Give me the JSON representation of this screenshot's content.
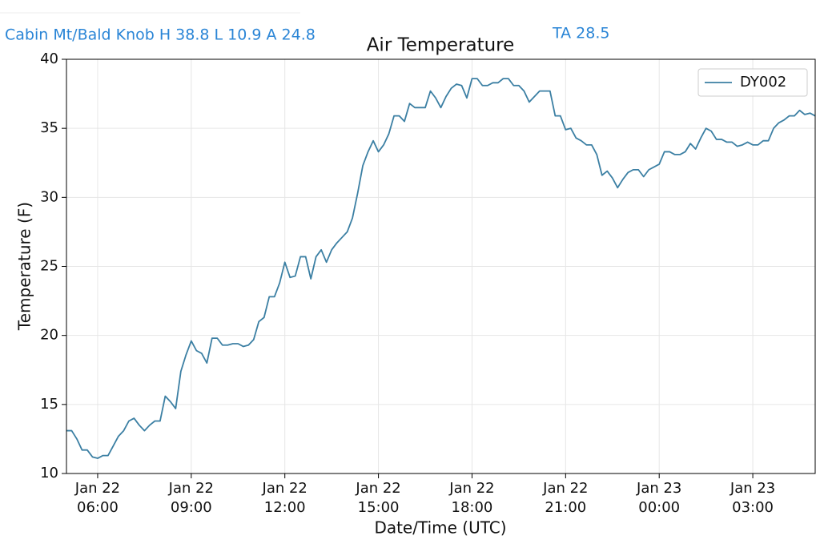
{
  "header": {
    "station": "Cabin Mt/Bald Knob H 38.8 L 10.9 A 24.8",
    "ta": "TA  28.5"
  },
  "chart_data": {
    "type": "line",
    "title": "Air Temperature",
    "xlabel": "Date/Time (UTC)",
    "ylabel": "Temperature (F)",
    "xlim": [
      "Jan 22 05:00",
      "Jan 23 05:00"
    ],
    "ylim": [
      10,
      40
    ],
    "yticks": [
      10,
      15,
      20,
      25,
      30,
      35,
      40
    ],
    "xticks": [
      {
        "value": "Jan 22 06:00",
        "label": [
          "Jan 22",
          "06:00"
        ]
      },
      {
        "value": "Jan 22 09:00",
        "label": [
          "Jan 22",
          "09:00"
        ]
      },
      {
        "value": "Jan 22 12:00",
        "label": [
          "Jan 22",
          "12:00"
        ]
      },
      {
        "value": "Jan 22 15:00",
        "label": [
          "Jan 22",
          "15:00"
        ]
      },
      {
        "value": "Jan 22 18:00",
        "label": [
          "Jan 22",
          "18:00"
        ]
      },
      {
        "value": "Jan 22 21:00",
        "label": [
          "Jan 22",
          "21:00"
        ]
      },
      {
        "value": "Jan 23 00:00",
        "label": [
          "Jan 23",
          "00:00"
        ]
      },
      {
        "value": "Jan 23 03:00",
        "label": [
          "Jan 23",
          "03:00"
        ]
      }
    ],
    "grid": true,
    "legend": "upper right",
    "x": [
      "Jan 22 05:00",
      "Jan 22 05:10",
      "Jan 22 05:20",
      "Jan 22 05:30",
      "Jan 22 05:40",
      "Jan 22 05:50",
      "Jan 22 06:00",
      "Jan 22 06:10",
      "Jan 22 06:20",
      "Jan 22 06:30",
      "Jan 22 06:40",
      "Jan 22 06:50",
      "Jan 22 07:00",
      "Jan 22 07:10",
      "Jan 22 07:20",
      "Jan 22 07:30",
      "Jan 22 07:40",
      "Jan 22 07:50",
      "Jan 22 08:00",
      "Jan 22 08:10",
      "Jan 22 08:20",
      "Jan 22 08:30",
      "Jan 22 08:40",
      "Jan 22 08:50",
      "Jan 22 09:00",
      "Jan 22 09:10",
      "Jan 22 09:20",
      "Jan 22 09:30",
      "Jan 22 09:40",
      "Jan 22 09:50",
      "Jan 22 10:00",
      "Jan 22 10:10",
      "Jan 22 10:20",
      "Jan 22 10:30",
      "Jan 22 10:40",
      "Jan 22 10:50",
      "Jan 22 11:00",
      "Jan 22 11:10",
      "Jan 22 11:20",
      "Jan 22 11:30",
      "Jan 22 11:40",
      "Jan 22 11:50",
      "Jan 22 12:00",
      "Jan 22 12:10",
      "Jan 22 12:20",
      "Jan 22 12:30",
      "Jan 22 12:40",
      "Jan 22 12:50",
      "Jan 22 13:00",
      "Jan 22 13:10",
      "Jan 22 13:20",
      "Jan 22 13:30",
      "Jan 22 13:40",
      "Jan 22 13:50",
      "Jan 22 14:00",
      "Jan 22 14:10",
      "Jan 22 14:20",
      "Jan 22 14:30",
      "Jan 22 14:40",
      "Jan 22 14:50",
      "Jan 22 15:00",
      "Jan 22 15:10",
      "Jan 22 15:20",
      "Jan 22 15:30",
      "Jan 22 15:40",
      "Jan 22 15:50",
      "Jan 22 16:00",
      "Jan 22 16:10",
      "Jan 22 16:20",
      "Jan 22 16:30",
      "Jan 22 16:40",
      "Jan 22 16:50",
      "Jan 22 17:00",
      "Jan 22 17:10",
      "Jan 22 17:20",
      "Jan 22 17:30",
      "Jan 22 17:40",
      "Jan 22 17:50",
      "Jan 22 18:00",
      "Jan 22 18:10",
      "Jan 22 18:20",
      "Jan 22 18:30",
      "Jan 22 18:40",
      "Jan 22 18:50",
      "Jan 22 19:00",
      "Jan 22 19:10",
      "Jan 22 19:20",
      "Jan 22 19:30",
      "Jan 22 19:40",
      "Jan 22 19:50",
      "Jan 22 20:00",
      "Jan 22 20:10",
      "Jan 22 20:20",
      "Jan 22 20:30",
      "Jan 22 20:40",
      "Jan 22 20:50",
      "Jan 22 21:00",
      "Jan 22 21:10",
      "Jan 22 21:20",
      "Jan 22 21:30",
      "Jan 22 21:40",
      "Jan 22 21:50",
      "Jan 22 22:00",
      "Jan 22 22:10",
      "Jan 22 22:20",
      "Jan 22 22:30",
      "Jan 22 22:40",
      "Jan 22 22:50",
      "Jan 22 23:00",
      "Jan 22 23:10",
      "Jan 22 23:20",
      "Jan 22 23:30",
      "Jan 22 23:40",
      "Jan 22 23:50",
      "Jan 23 00:00",
      "Jan 23 00:10",
      "Jan 23 00:20",
      "Jan 23 00:30",
      "Jan 23 00:40",
      "Jan 23 00:50",
      "Jan 23 01:00",
      "Jan 23 01:10",
      "Jan 23 01:20",
      "Jan 23 01:30",
      "Jan 23 01:40",
      "Jan 23 01:50",
      "Jan 23 02:00",
      "Jan 23 02:10",
      "Jan 23 02:20",
      "Jan 23 02:30",
      "Jan 23 02:40",
      "Jan 23 02:50",
      "Jan 23 03:00",
      "Jan 23 03:10",
      "Jan 23 03:20",
      "Jan 23 03:30",
      "Jan 23 03:40",
      "Jan 23 03:50",
      "Jan 23 04:00",
      "Jan 23 04:10",
      "Jan 23 04:20",
      "Jan 23 04:30",
      "Jan 23 04:40",
      "Jan 23 04:50",
      "Jan 23 05:00"
    ],
    "series": [
      {
        "name": "DY002",
        "color": "#3b7fa3",
        "values": [
          13.1,
          13.1,
          12.5,
          11.7,
          11.7,
          11.2,
          11.1,
          11.3,
          11.3,
          12.0,
          12.7,
          13.1,
          13.8,
          14.0,
          13.5,
          13.1,
          13.5,
          13.8,
          13.8,
          15.6,
          15.2,
          14.7,
          17.4,
          18.6,
          19.6,
          18.9,
          18.7,
          18.0,
          19.8,
          19.8,
          19.3,
          19.3,
          19.4,
          19.4,
          19.2,
          19.3,
          19.7,
          21.0,
          21.3,
          22.8,
          22.8,
          23.8,
          25.3,
          24.2,
          24.3,
          25.7,
          25.7,
          24.1,
          25.7,
          26.2,
          25.3,
          26.2,
          26.7,
          27.1,
          27.5,
          28.5,
          30.3,
          32.3,
          33.3,
          34.1,
          33.3,
          33.8,
          34.6,
          35.9,
          35.9,
          35.5,
          36.8,
          36.5,
          36.5,
          36.5,
          37.7,
          37.2,
          36.5,
          37.3,
          37.9,
          38.2,
          38.1,
          37.2,
          38.6,
          38.6,
          38.1,
          38.1,
          38.3,
          38.3,
          38.6,
          38.6,
          38.1,
          38.1,
          37.7,
          36.9,
          37.3,
          37.7,
          37.7,
          37.7,
          35.9,
          35.9,
          34.9,
          35.0,
          34.3,
          34.1,
          33.8,
          33.8,
          33.1,
          31.6,
          31.9,
          31.4,
          30.7,
          31.3,
          31.8,
          32.0,
          32.0,
          31.5,
          32.0,
          32.2,
          32.4,
          33.3,
          33.3,
          33.1,
          33.1,
          33.3,
          33.9,
          33.5,
          34.3,
          35.0,
          34.8,
          34.2,
          34.2,
          34.0,
          34.0,
          33.7,
          33.8,
          34.0,
          33.8,
          33.8,
          34.1,
          34.1,
          35.0,
          35.4,
          35.6,
          35.9,
          35.9,
          36.3,
          36.0,
          36.1,
          35.9
        ]
      }
    ]
  }
}
